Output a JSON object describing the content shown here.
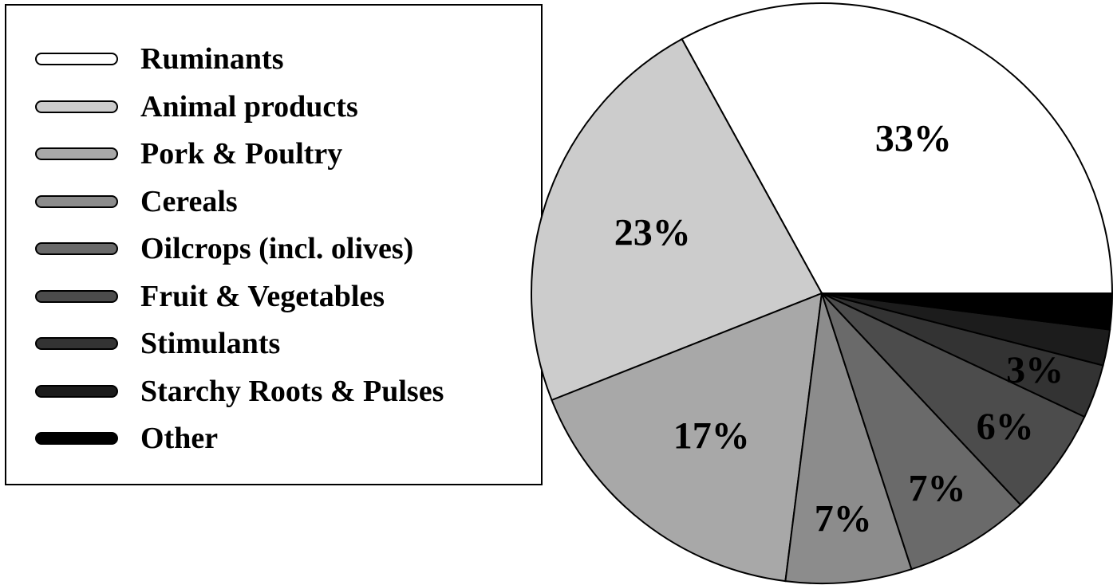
{
  "chart_data": {
    "type": "pie",
    "legend_position": "left",
    "slices": [
      {
        "name": "Ruminants",
        "value": 33,
        "label": "33%",
        "color": "#ffffff"
      },
      {
        "name": "Animal products",
        "value": 23,
        "label": "23%",
        "color": "#cccccc"
      },
      {
        "name": "Pork & Poultry",
        "value": 17,
        "label": "17%",
        "color": "#a8a8a8"
      },
      {
        "name": "Cereals",
        "value": 7,
        "label": "7%",
        "color": "#8c8c8c"
      },
      {
        "name": "Oilcrops (incl. olives)",
        "value": 7,
        "label": "7%",
        "color": "#6a6a6a"
      },
      {
        "name": "Fruit & Vegetables",
        "value": 6,
        "label": "6%",
        "color": "#4c4c4c"
      },
      {
        "name": "Stimulants",
        "value": 3,
        "label": "3%",
        "color": "#333333"
      },
      {
        "name": "Starchy Roots & Pulses",
        "value": 2,
        "label": "",
        "color": "#1c1c1c"
      },
      {
        "name": "Other",
        "value": 2,
        "label": "",
        "color": "#000000"
      }
    ]
  }
}
